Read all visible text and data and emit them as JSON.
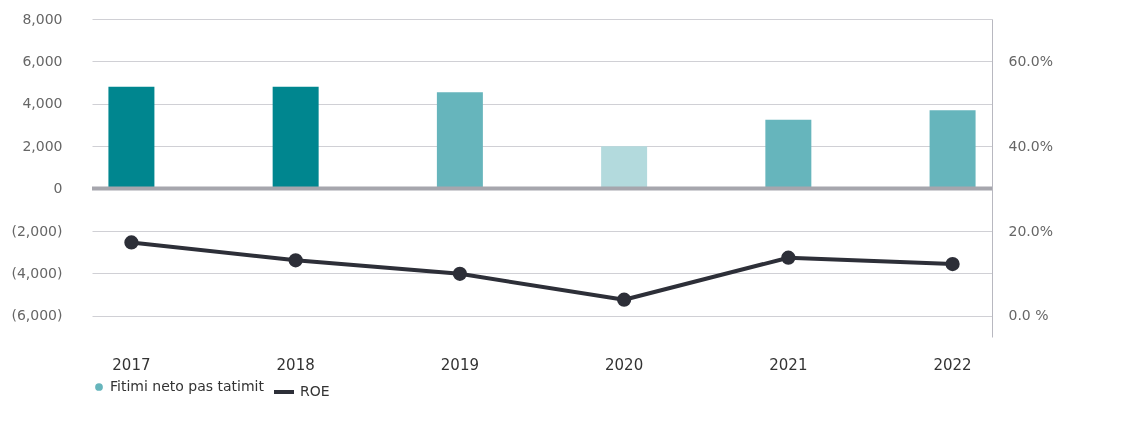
{
  "chart_data": {
    "type": "bar",
    "categories": [
      "2017",
      "2018",
      "2019",
      "2020",
      "2021",
      "2022"
    ],
    "series": [
      {
        "name": "Fitimi neto pas tatimit",
        "color": "#66b5bc",
        "colors": [
          "#00868f",
          "#00868f",
          "#66b5bc",
          "#b3dadd",
          "#66b5bc",
          "#66b5bc"
        ],
        "values": [
          4800,
          4800,
          4550,
          2000,
          3250,
          3700
        ]
      },
      {
        "name": "ROE",
        "type": "line",
        "axis": "y2",
        "color": "#2d2f38",
        "values": [
          17.3,
          13.1,
          9.9,
          3.8,
          13.7,
          12.2
        ]
      }
    ],
    "ylim": [
      -7000,
      8000
    ],
    "yticks": [
      {
        "value": -6000,
        "label": "(6,000)"
      },
      {
        "value": -4000,
        "label": "(4,000)"
      },
      {
        "value": -2000,
        "label": "(2,000)"
      },
      {
        "value": 0,
        "label": "0"
      },
      {
        "value": 2000,
        "label": "2,000"
      },
      {
        "value": 4000,
        "label": "4,000"
      },
      {
        "value": 6000,
        "label": "6,000"
      },
      {
        "value": 8000,
        "label": "8,000"
      }
    ],
    "y2lim": [
      -5,
      70
    ],
    "y2ticks": [
      {
        "value": 0,
        "label": "0.0 %"
      },
      {
        "value": 20,
        "label": "20.0%"
      },
      {
        "value": 40,
        "label": "40.0%"
      },
      {
        "value": 60,
        "label": "60.0%"
      }
    ],
    "ref_lines": [
      {
        "axis": "y",
        "value": 0,
        "color": "#a6a6ad"
      }
    ],
    "grid": "y",
    "legend": "bottom",
    "marker": "circle"
  }
}
